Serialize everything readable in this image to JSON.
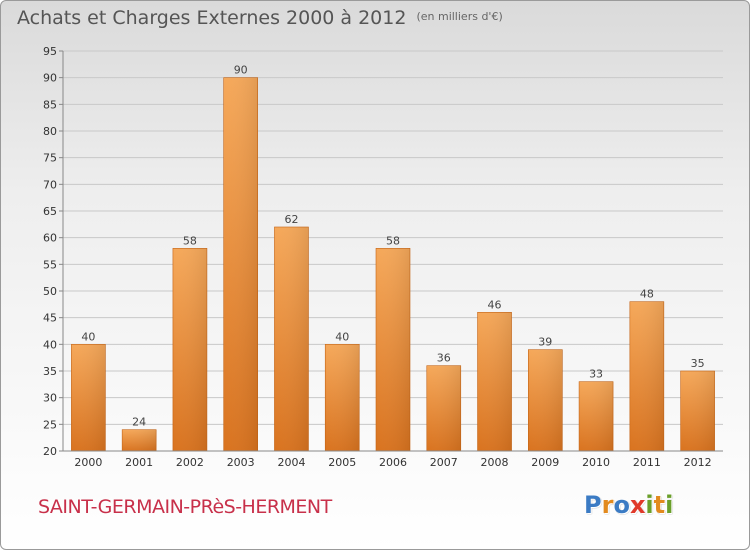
{
  "title": "Achats et Charges Externes 2000 à 2012",
  "unit": "(en milliers d'€)",
  "commune": "SAINT-GERMAIN-PRèS-HERMENT",
  "logo": [
    "P",
    "r",
    "o",
    "x",
    "i",
    "t",
    "i"
  ],
  "colors": {
    "bar_light": "#f5a85a",
    "bar_dark": "#d9731f",
    "logo": [
      "#3b7bc4",
      "#e28a1e",
      "#3b7bc4",
      "#e0392a",
      "#6a9f2a",
      "#e28a1e",
      "#6a9f2a"
    ]
  },
  "chart_data": {
    "type": "bar",
    "categories": [
      "2000",
      "2001",
      "2002",
      "2003",
      "2004",
      "2005",
      "2006",
      "2007",
      "2008",
      "2009",
      "2010",
      "2011",
      "2012"
    ],
    "values": [
      40,
      24,
      58,
      90,
      62,
      40,
      58,
      36,
      46,
      39,
      33,
      48,
      35
    ],
    "ylim": [
      20,
      95
    ],
    "yticks": [
      20,
      25,
      30,
      35,
      40,
      45,
      50,
      55,
      60,
      65,
      70,
      75,
      80,
      85,
      90,
      95
    ],
    "grid": true,
    "data_labels": true
  }
}
